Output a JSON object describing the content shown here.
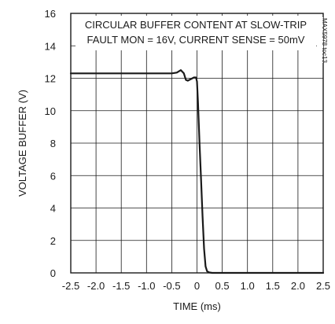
{
  "chart_data": {
    "type": "line",
    "title": "",
    "xlabel": "TIME (ms)",
    "ylabel": "VOLTAGE BUFFER (V)",
    "xlim": [
      -2.5,
      2.5
    ],
    "ylim": [
      0,
      16
    ],
    "xticks": [
      -2.5,
      -2.0,
      -1.5,
      -1.0,
      -0.5,
      0,
      0.5,
      1.0,
      1.5,
      2.0,
      2.5
    ],
    "xtick_labels": [
      "-2.5",
      "-2.0",
      "-1.5",
      "-1.0",
      "-0.5",
      "0",
      "0.5",
      "1.0",
      "1.5",
      "2.0",
      "2.5"
    ],
    "yticks": [
      0,
      2,
      4,
      6,
      8,
      10,
      12,
      14,
      16
    ],
    "ytick_labels": [
      "0",
      "2",
      "4",
      "6",
      "8",
      "10",
      "12",
      "14",
      "16"
    ],
    "grid": true,
    "annotations": [
      "CIRCULAR BUFFER CONTENT AT SLOW-TRIP",
      "FAULT MON = 16V, CURRENT SENSE = 50mV"
    ],
    "figure_code": "MAX5978 toc13",
    "series": [
      {
        "x": [
          -2.5,
          -1.0,
          -0.5,
          -0.4,
          -0.32,
          -0.26,
          -0.22,
          -0.18,
          -0.12,
          -0.06,
          -0.02,
          0.0,
          0.02,
          0.05,
          0.08,
          0.11,
          0.14,
          0.17,
          0.2,
          0.24,
          0.3,
          0.5,
          1.0,
          2.0,
          2.5
        ],
        "y": [
          12.3,
          12.3,
          12.3,
          12.35,
          12.5,
          12.3,
          11.9,
          11.85,
          11.95,
          12.05,
          12.05,
          11.8,
          10.5,
          8.0,
          5.8,
          3.5,
          1.5,
          0.4,
          0.1,
          0.03,
          0.0,
          0.0,
          0.0,
          0.0,
          0.0
        ]
      }
    ]
  }
}
